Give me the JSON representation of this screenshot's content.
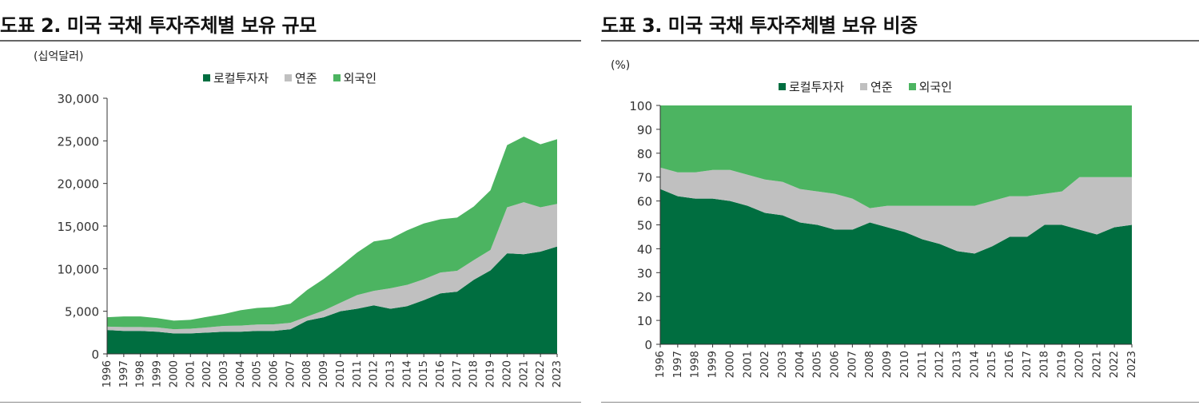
{
  "charts": [
    {
      "title": "도표 2. 미국 국채 투자주체별 보유 규모",
      "unit_label": "(십억달러)"
    },
    {
      "title": "도표 3. 미국 국채 투자주체별 보유 비중",
      "unit_label": "(%)"
    }
  ],
  "legend": [
    "로컬투자자",
    "연준",
    "외국인"
  ],
  "colors": {
    "local": "#006e40",
    "fed": "#c0c0c0",
    "foreign": "#4cb461",
    "rule": "#666666"
  },
  "chart_data": [
    {
      "type": "area",
      "stacked": true,
      "title": "도표 2. 미국 국채 투자주체별 보유 규모",
      "ylabel": "(십억달러)",
      "ylim": [
        0,
        30000
      ],
      "yticks": [
        "0",
        "5,000",
        "10,000",
        "15,000",
        "20,000",
        "25,000",
        "30,000"
      ],
      "grid": false,
      "legend_position": "top",
      "x": [
        "1996",
        "1997",
        "1998",
        "1999",
        "2000",
        "2001",
        "2002",
        "2003",
        "2004",
        "2005",
        "2006",
        "2007",
        "2008",
        "2009",
        "2010",
        "2011",
        "2012",
        "2013",
        "2014",
        "2015",
        "2016",
        "2017",
        "2018",
        "2019",
        "2020",
        "2021",
        "2022",
        "2023"
      ],
      "series": [
        {
          "name": "로컬투자자",
          "values": [
            2800,
            2700,
            2700,
            2600,
            2400,
            2400,
            2500,
            2600,
            2600,
            2700,
            2700,
            2900,
            3900,
            4300,
            5000,
            5300,
            5700,
            5300,
            5600,
            6300,
            7100,
            7300,
            8700,
            9800,
            11800,
            11700,
            12000,
            12600
          ]
        },
        {
          "name": "연준",
          "values": [
            400,
            450,
            450,
            500,
            500,
            550,
            600,
            680,
            720,
            740,
            770,
            750,
            480,
            780,
            1000,
            1600,
            1700,
            2400,
            2500,
            2450,
            2450,
            2450,
            2300,
            2400,
            5400,
            6100,
            5200,
            5000
          ]
        },
        {
          "name": "외국인",
          "values": [
            1100,
            1250,
            1250,
            1100,
            1000,
            1050,
            1250,
            1400,
            1800,
            1950,
            2030,
            2250,
            3120,
            3720,
            4300,
            5000,
            5800,
            5800,
            6400,
            6550,
            6250,
            6250,
            6300,
            7000,
            7300,
            7700,
            7400,
            7600
          ]
        }
      ]
    },
    {
      "type": "area",
      "stacked": true,
      "title": "도표 3. 미국 국채 투자주체별 보유 비중",
      "ylabel": "(%)",
      "ylim": [
        0,
        100
      ],
      "yticks": [
        "0",
        "10",
        "20",
        "30",
        "40",
        "50",
        "60",
        "70",
        "80",
        "90",
        "100"
      ],
      "grid": false,
      "legend_position": "top",
      "x": [
        "1996",
        "1997",
        "1998",
        "1999",
        "2000",
        "2001",
        "2002",
        "2003",
        "2004",
        "2005",
        "2006",
        "2007",
        "2008",
        "2009",
        "2010",
        "2011",
        "2012",
        "2013",
        "2014",
        "2015",
        "2016",
        "2017",
        "2018",
        "2019",
        "2020",
        "2021",
        "2022",
        "2023"
      ],
      "series": [
        {
          "name": "로컬투자자",
          "values": [
            65,
            62,
            61,
            61,
            60,
            58,
            55,
            54,
            51,
            50,
            48,
            48,
            51,
            49,
            47,
            44,
            42,
            39,
            38,
            41,
            45,
            45,
            50,
            50,
            48,
            46,
            49,
            50
          ]
        },
        {
          "name": "연준",
          "values": [
            9,
            10,
            11,
            12,
            13,
            13,
            14,
            14,
            14,
            14,
            15,
            13,
            6,
            9,
            11,
            14,
            16,
            19,
            20,
            19,
            17,
            17,
            13,
            14,
            22,
            24,
            21,
            20
          ]
        },
        {
          "name": "외국인",
          "values": [
            26,
            28,
            28,
            27,
            27,
            29,
            31,
            32,
            35,
            36,
            37,
            39,
            43,
            42,
            42,
            42,
            42,
            42,
            42,
            40,
            38,
            38,
            37,
            36,
            30,
            30,
            30,
            30
          ]
        }
      ]
    }
  ]
}
